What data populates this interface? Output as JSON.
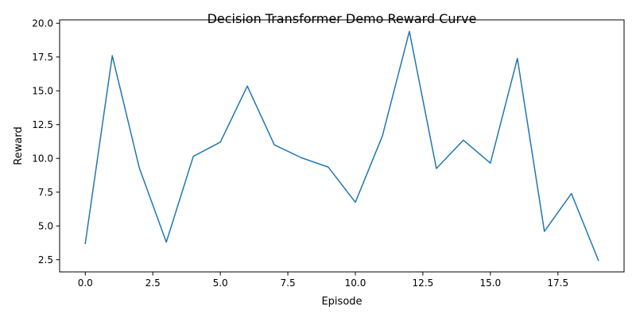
{
  "chart_data": {
    "type": "line",
    "title": "Decision Transformer Demo Reward Curve",
    "xlabel": "Episode",
    "ylabel": "Reward",
    "xlim": [
      -0.95,
      19.95
    ],
    "ylim": [
      1.6,
      20.25
    ],
    "xticks": [
      0.0,
      2.5,
      5.0,
      7.5,
      10.0,
      12.5,
      15.0,
      17.5
    ],
    "xtick_labels": [
      "0.0",
      "2.5",
      "5.0",
      "7.5",
      "10.0",
      "12.5",
      "15.0",
      "17.5"
    ],
    "yticks": [
      2.5,
      5.0,
      7.5,
      10.0,
      12.5,
      15.0,
      17.5,
      20.0
    ],
    "ytick_labels": [
      "2.5",
      "5.0",
      "7.5",
      "10.0",
      "12.5",
      "15.0",
      "17.5",
      "20.0"
    ],
    "grid": false,
    "series": [
      {
        "color": "#1f77b4",
        "x": [
          0,
          1,
          2,
          3,
          4,
          5,
          6,
          7,
          8,
          9,
          10,
          11,
          12,
          13,
          14,
          15,
          16,
          17,
          18,
          19
        ],
        "y": [
          3.7,
          17.6,
          9.3,
          3.8,
          10.15,
          11.2,
          15.35,
          11.0,
          10.05,
          9.35,
          6.75,
          11.65,
          19.4,
          9.25,
          11.35,
          9.65,
          17.4,
          4.6,
          7.4,
          2.45
        ]
      }
    ]
  }
}
